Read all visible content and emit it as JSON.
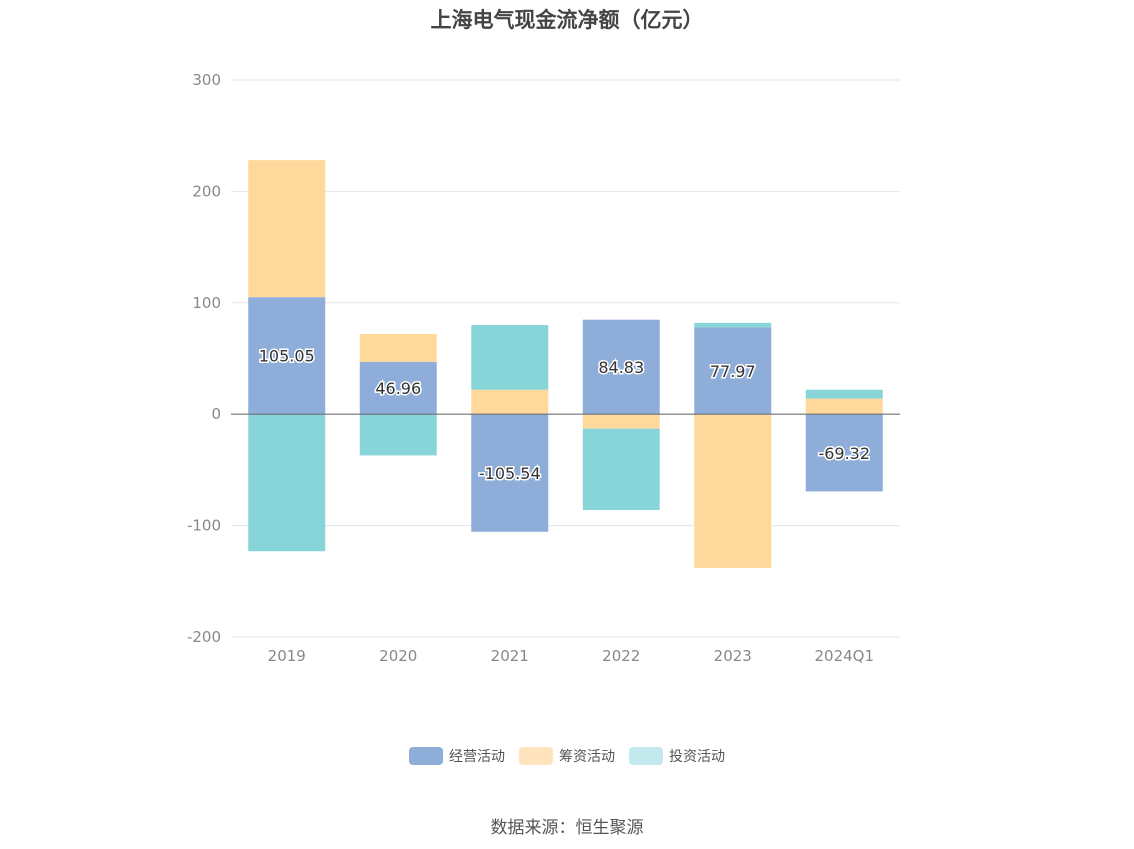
{
  "chart_data": {
    "type": "bar",
    "title": "上海电气现金流净额（亿元）",
    "categories": [
      "2019",
      "2020",
      "2021",
      "2022",
      "2023",
      "2024Q1"
    ],
    "series": [
      {
        "name": "经营活动",
        "color": "#8eadd9",
        "values": [
          105.05,
          46.96,
          -105.54,
          84.83,
          77.97,
          -69.32
        ],
        "labels": [
          "105.05",
          "46.96",
          "-105.54",
          "84.83",
          "77.97",
          "-69.32"
        ]
      },
      {
        "name": "筹资活动",
        "color": "#ffd89b",
        "values": [
          123,
          25,
          22,
          -13,
          -138,
          14
        ]
      },
      {
        "name": "投资活动",
        "color": "#88d5d9",
        "values": [
          -123,
          -37,
          58,
          -73,
          4,
          8
        ]
      }
    ],
    "ylim": [
      -200,
      300
    ],
    "yticks": [
      300,
      200,
      100,
      0,
      -100,
      -200
    ],
    "grid": true,
    "legend_position": "bottom",
    "stacked": true
  },
  "legend_colors": [
    "#8eadd9",
    "#ffe4bf",
    "#c4e9ec"
  ],
  "source_text": "数据来源：恒生聚源"
}
